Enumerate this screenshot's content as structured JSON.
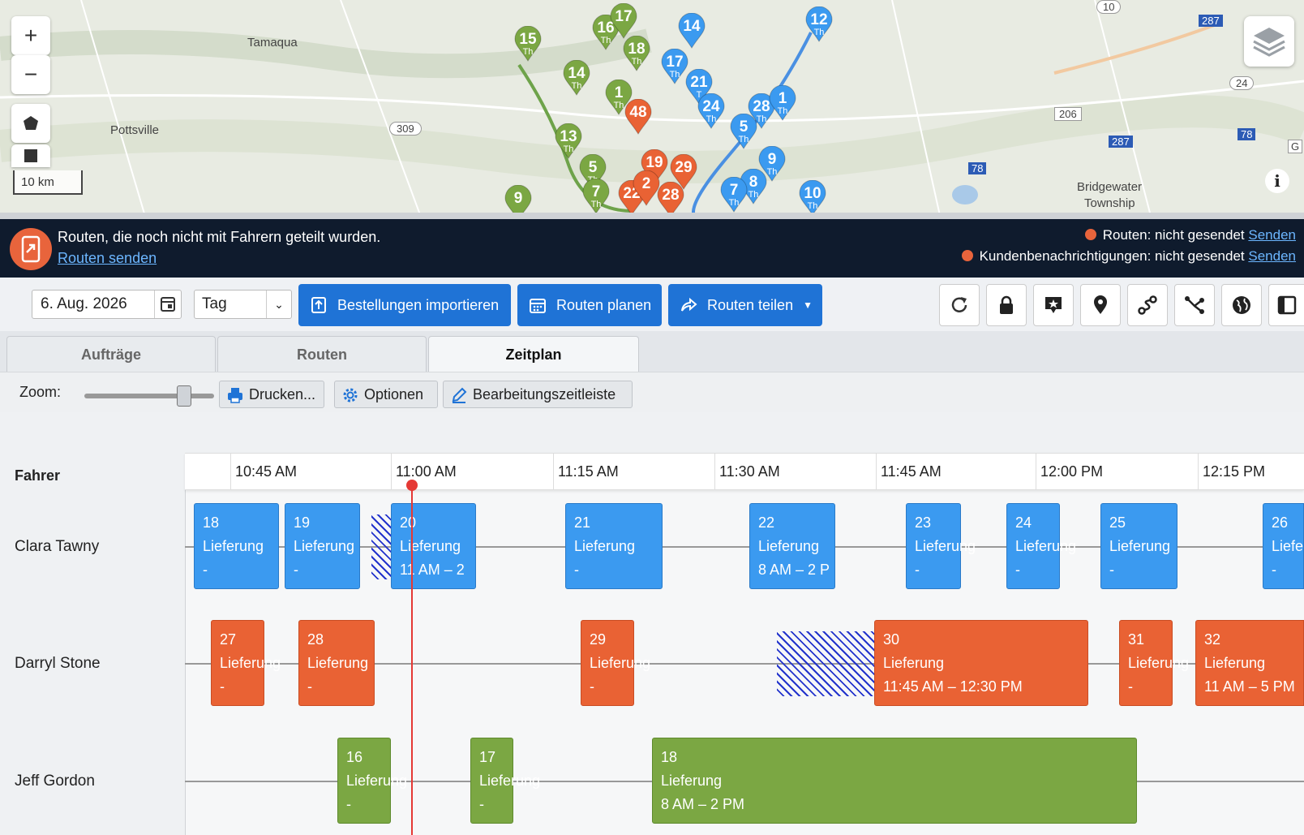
{
  "map": {
    "zoom_in": "+",
    "zoom_out": "−",
    "scale_label": "10 km",
    "places": [
      "Tamaqua",
      "Pottsville",
      "Bridgewater",
      "Township"
    ],
    "road_numbers": [
      "309",
      "287",
      "24",
      "206",
      "287",
      "78",
      "78",
      "10",
      "G"
    ],
    "pins": {
      "blue": [
        {
          "n": "12",
          "d": "Th"
        },
        {
          "n": "14",
          "d": ""
        },
        {
          "n": "17",
          "d": "Th"
        },
        {
          "n": "21",
          "d": "T"
        },
        {
          "n": "24",
          "d": "Th"
        },
        {
          "n": "5",
          "d": "Th"
        },
        {
          "n": "28",
          "d": "Th"
        },
        {
          "n": "1",
          "d": "Th"
        },
        {
          "n": "9",
          "d": "Th"
        },
        {
          "n": "8",
          "d": "Th"
        },
        {
          "n": "7",
          "d": "Th"
        },
        {
          "n": "10",
          "d": "Th"
        }
      ],
      "green": [
        {
          "n": "15",
          "d": "Th"
        },
        {
          "n": "16",
          "d": "Th"
        },
        {
          "n": "17",
          "d": ""
        },
        {
          "n": "18",
          "d": "Th"
        },
        {
          "n": "14",
          "d": "Th"
        },
        {
          "n": "1",
          "d": "Th"
        },
        {
          "n": "13",
          "d": "Th"
        },
        {
          "n": "5",
          "d": "Th"
        },
        {
          "n": "7",
          "d": "Th"
        },
        {
          "n": "9",
          "d": ""
        }
      ],
      "orange": [
        {
          "n": "48",
          "d": ""
        },
        {
          "n": "19",
          "d": ""
        },
        {
          "n": "29",
          "d": ""
        },
        {
          "n": "28",
          "d": ""
        },
        {
          "n": "22",
          "d": ""
        },
        {
          "n": "2",
          "d": ""
        }
      ]
    }
  },
  "banner": {
    "message": "Routen, die noch nicht mit Fahrern geteilt wurden.",
    "link": "Routen senden",
    "status1": "Routen: nicht gesendet",
    "status2": "Kundenbenachrichtigungen: nicht gesendet",
    "send": "Senden"
  },
  "toolbar": {
    "date": "6. Aug. 2026",
    "view": "Tag",
    "import": "Bestellungen importieren",
    "plan": "Routen planen",
    "share": "Routen teilen"
  },
  "tabs": [
    "Aufträge",
    "Routen",
    "Zeitplan"
  ],
  "zoom": {
    "label": "Zoom:",
    "level": 0.75,
    "print": "Drucken...",
    "options": "Optionen",
    "edit": "Bearbeitungszeitleiste"
  },
  "schedule": {
    "driver_header": "Fahrer",
    "ticks": [
      "10:45 AM",
      "11:00 AM",
      "11:15 AM",
      "11:30 AM",
      "11:45 AM",
      "12:00 PM",
      "12:15 PM"
    ],
    "drivers": [
      "Clara Tawny",
      "Darryl Stone",
      "Jeff Gordon"
    ],
    "stops": {
      "clara": [
        {
          "n": "18",
          "t": "Lieferung",
          "w": "-"
        },
        {
          "n": "19",
          "t": "Lieferung",
          "w": "-"
        },
        {
          "n": "20",
          "t": "Lieferung",
          "w": "11 AM – 2"
        },
        {
          "n": "21",
          "t": "Lieferung",
          "w": "-"
        },
        {
          "n": "22",
          "t": "Lieferung",
          "w": "8 AM – 2 P"
        },
        {
          "n": "23",
          "t": "Lieferung",
          "w": "-"
        },
        {
          "n": "24",
          "t": "Lieferung",
          "w": "-"
        },
        {
          "n": "25",
          "t": "Lieferung",
          "w": "-"
        },
        {
          "n": "26",
          "t": "Liefer",
          "w": "-"
        }
      ],
      "darryl": [
        {
          "n": "27",
          "t": "Lieferung",
          "w": "-"
        },
        {
          "n": "28",
          "t": "Lieferung",
          "w": "-"
        },
        {
          "n": "29",
          "t": "Lieferung",
          "w": "-"
        },
        {
          "n": "30",
          "t": "Lieferung",
          "w": "11:45 AM – 12:30 PM"
        },
        {
          "n": "31",
          "t": "Lieferung",
          "w": "-"
        },
        {
          "n": "32",
          "t": "Lieferung",
          "w": "11 AM – 5 PM"
        }
      ],
      "jeff": [
        {
          "n": "16",
          "t": "Lieferung",
          "w": "-"
        },
        {
          "n": "17",
          "t": "Lieferung",
          "w": "-"
        },
        {
          "n": "18",
          "t": "Lieferung",
          "w": "8 AM – 2 PM"
        }
      ]
    }
  },
  "colors": {
    "blue": "#3b9af0",
    "orange": "#e96234",
    "green": "#7ba743",
    "primary": "#1f73d6",
    "banner": "#0f1b2d"
  }
}
